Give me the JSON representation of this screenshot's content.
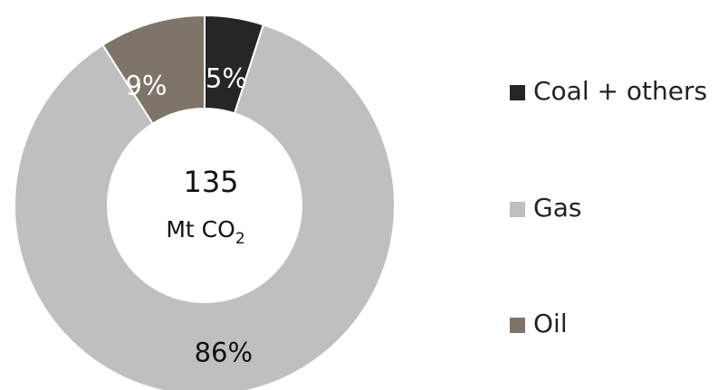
{
  "chart_data": {
    "type": "pie",
    "categories": [
      "Coal + others",
      "Gas",
      "Oil"
    ],
    "values": [
      5,
      86,
      9
    ],
    "labels": [
      "5%",
      "86%",
      "9%"
    ],
    "colors": [
      "#262626",
      "#bfbfbf",
      "#7f7469"
    ],
    "label_colors": [
      "#ffffff",
      "#111111",
      "#ffffff"
    ],
    "center_value": "135",
    "center_unit": "Mt CO",
    "center_unit_subscript": "2",
    "legend_position": "right",
    "start": "top",
    "direction": "clockwise"
  }
}
